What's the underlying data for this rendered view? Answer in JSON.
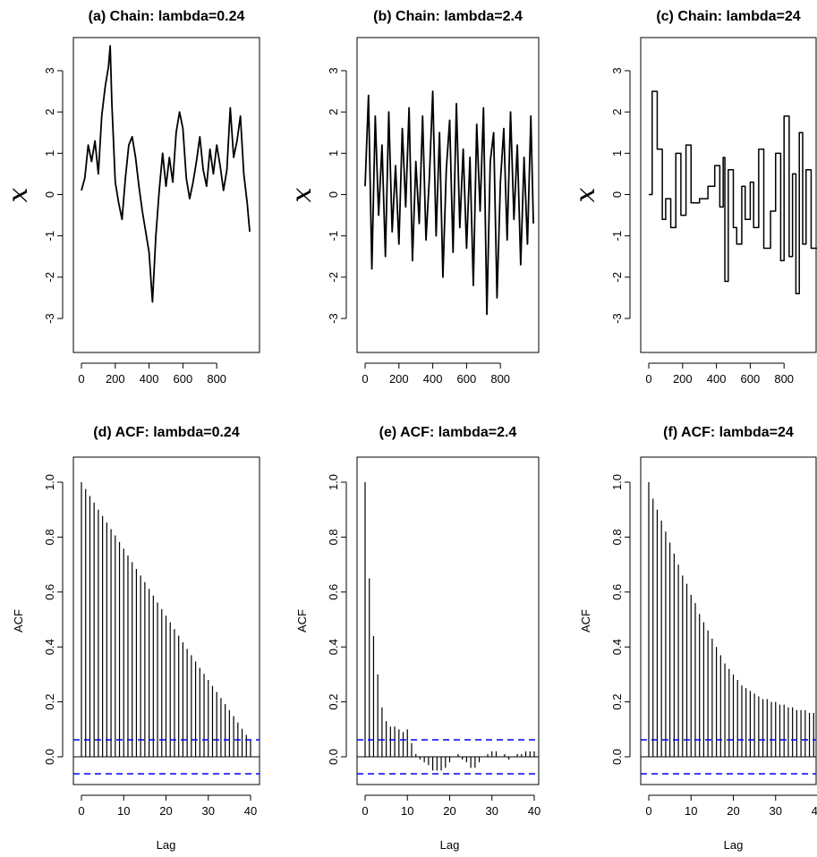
{
  "chart_data": [
    {
      "type": "line",
      "panel": "a",
      "title": "(a) Chain: lambda=0.24",
      "xlabel": "",
      "ylabel": "x",
      "xlim": [
        0,
        1000
      ],
      "ylim": [
        -3,
        3.5
      ],
      "xticks": [
        0,
        200,
        400,
        600,
        800
      ],
      "yticks": [
        -3,
        -2,
        -1,
        0,
        1,
        2,
        3
      ],
      "x": [
        0,
        20,
        40,
        60,
        80,
        100,
        120,
        140,
        160,
        170,
        180,
        200,
        220,
        240,
        260,
        280,
        300,
        320,
        340,
        360,
        380,
        400,
        410,
        420,
        440,
        460,
        480,
        500,
        520,
        540,
        560,
        580,
        600,
        620,
        640,
        660,
        680,
        700,
        720,
        740,
        760,
        780,
        800,
        820,
        840,
        860,
        880,
        900,
        920,
        940,
        960,
        980,
        995
      ],
      "y": [
        0.1,
        0.4,
        1.2,
        0.8,
        1.3,
        0.5,
        1.9,
        2.6,
        3.1,
        3.6,
        2.2,
        0.3,
        -0.2,
        -0.6,
        0.4,
        1.2,
        1.4,
        0.9,
        0.2,
        -0.4,
        -0.9,
        -1.4,
        -2.0,
        -2.6,
        -1.0,
        0.1,
        1.0,
        0.2,
        0.9,
        0.3,
        1.5,
        2.0,
        1.6,
        0.4,
        -0.1,
        0.3,
        0.8,
        1.4,
        0.6,
        0.2,
        1.1,
        0.5,
        1.2,
        0.7,
        0.1,
        0.6,
        2.1,
        0.9,
        1.3,
        1.9,
        0.5,
        -0.2,
        -0.9
      ]
    },
    {
      "type": "line",
      "panel": "b",
      "title": "(b) Chain: lambda=2.4",
      "xlabel": "",
      "ylabel": "x",
      "xlim": [
        0,
        1000
      ],
      "ylim": [
        -3,
        3.5
      ],
      "xticks": [
        0,
        200,
        400,
        600,
        800
      ],
      "yticks": [
        -3,
        -2,
        -1,
        0,
        1,
        2,
        3
      ],
      "x": [
        0,
        20,
        40,
        60,
        80,
        100,
        120,
        140,
        160,
        180,
        200,
        220,
        240,
        260,
        280,
        300,
        320,
        340,
        360,
        380,
        400,
        420,
        440,
        460,
        480,
        500,
        520,
        540,
        560,
        580,
        600,
        620,
        640,
        660,
        680,
        700,
        720,
        740,
        760,
        780,
        800,
        820,
        840,
        860,
        880,
        900,
        920,
        940,
        960,
        980,
        995
      ],
      "y": [
        0.2,
        2.4,
        -1.8,
        1.9,
        -0.5,
        1.2,
        -1.5,
        2.0,
        -0.9,
        0.7,
        -1.2,
        1.6,
        -0.3,
        2.1,
        -1.6,
        0.8,
        -0.7,
        1.9,
        -1.1,
        0.4,
        2.5,
        -1.0,
        1.5,
        -2.0,
        0.6,
        1.8,
        -1.4,
        2.2,
        -0.8,
        1.1,
        -1.3,
        0.9,
        -2.2,
        1.7,
        -0.4,
        2.1,
        -2.9,
        0.8,
        1.5,
        -2.5,
        0.3,
        1.6,
        -1.1,
        2.0,
        -0.6,
        1.2,
        -1.7,
        0.9,
        -1.2,
        1.9,
        -0.7
      ]
    },
    {
      "type": "line",
      "panel": "c",
      "title": "(c) Chain: lambda=24",
      "xlabel": "",
      "ylabel": "x",
      "xlim": [
        0,
        1000
      ],
      "ylim": [
        -3,
        3.5
      ],
      "xticks": [
        0,
        200,
        400,
        600,
        800
      ],
      "yticks": [
        -3,
        -2,
        -1,
        0,
        1,
        2,
        3
      ],
      "x": [
        0,
        20,
        50,
        80,
        100,
        130,
        160,
        190,
        220,
        250,
        300,
        350,
        390,
        420,
        440,
        450,
        470,
        500,
        520,
        550,
        570,
        600,
        620,
        650,
        680,
        720,
        750,
        780,
        800,
        830,
        850,
        870,
        890,
        910,
        930,
        960,
        995
      ],
      "y": [
        0.0,
        2.5,
        1.1,
        -0.6,
        -0.1,
        -0.8,
        1.0,
        -0.5,
        1.2,
        -0.2,
        -0.1,
        0.2,
        0.7,
        -0.3,
        0.9,
        -2.1,
        0.6,
        -0.8,
        -1.2,
        0.2,
        -0.6,
        0.3,
        -0.8,
        1.1,
        -1.3,
        -0.4,
        1.0,
        -1.6,
        1.9,
        -1.5,
        0.5,
        -2.4,
        1.5,
        -1.2,
        0.6,
        -1.3,
        -1.3
      ]
    },
    {
      "type": "bar",
      "panel": "d",
      "title": "(d) ACF: lambda=0.24",
      "xlabel": "Lag",
      "ylabel": "ACF",
      "xlim": [
        0,
        41
      ],
      "ylim": [
        -0.1,
        1.03
      ],
      "xticks": [
        0,
        10,
        20,
        30,
        40
      ],
      "yticks": [
        0.0,
        0.2,
        0.4,
        0.6,
        0.8,
        1.0
      ],
      "ci": 0.062,
      "lags": [
        0,
        1,
        2,
        3,
        4,
        5,
        6,
        7,
        8,
        9,
        10,
        11,
        12,
        13,
        14,
        15,
        16,
        17,
        18,
        19,
        20,
        21,
        22,
        23,
        24,
        25,
        26,
        27,
        28,
        29,
        30,
        31,
        32,
        33,
        34,
        35,
        36,
        37,
        38,
        39,
        40
      ],
      "values": [
        1.0,
        0.975,
        0.95,
        0.925,
        0.9,
        0.877,
        0.853,
        0.829,
        0.806,
        0.782,
        0.758,
        0.733,
        0.709,
        0.684,
        0.66,
        0.636,
        0.611,
        0.587,
        0.562,
        0.538,
        0.514,
        0.49,
        0.465,
        0.441,
        0.417,
        0.393,
        0.37,
        0.347,
        0.324,
        0.302,
        0.28,
        0.258,
        0.236,
        0.214,
        0.192,
        0.17,
        0.148,
        0.125,
        0.102,
        0.08,
        0.06
      ]
    },
    {
      "type": "bar",
      "panel": "e",
      "title": "(e) ACF: lambda=2.4",
      "xlabel": "Lag",
      "ylabel": "ACF",
      "xlim": [
        0,
        41
      ],
      "ylim": [
        -0.1,
        1.03
      ],
      "xticks": [
        0,
        10,
        20,
        30,
        40
      ],
      "yticks": [
        0.0,
        0.2,
        0.4,
        0.6,
        0.8,
        1.0
      ],
      "ci": 0.062,
      "lags": [
        0,
        1,
        2,
        3,
        4,
        5,
        6,
        7,
        8,
        9,
        10,
        11,
        12,
        13,
        14,
        15,
        16,
        17,
        18,
        19,
        20,
        21,
        22,
        23,
        24,
        25,
        26,
        27,
        28,
        29,
        30,
        31,
        32,
        33,
        34,
        35,
        36,
        37,
        38,
        39,
        40
      ],
      "values": [
        1.0,
        0.65,
        0.44,
        0.3,
        0.18,
        0.13,
        0.11,
        0.11,
        0.1,
        0.09,
        0.1,
        0.05,
        0.01,
        -0.01,
        -0.02,
        -0.03,
        -0.05,
        -0.05,
        -0.05,
        -0.04,
        -0.02,
        0.0,
        0.01,
        -0.01,
        -0.02,
        -0.04,
        -0.04,
        -0.02,
        0.0,
        0.01,
        0.02,
        0.02,
        0.0,
        0.01,
        -0.01,
        0.0,
        0.01,
        0.01,
        0.02,
        0.02,
        0.02
      ]
    },
    {
      "type": "bar",
      "panel": "f",
      "title": "(f) ACF: lambda=24",
      "xlabel": "Lag",
      "ylabel": "ACF",
      "xlim": [
        0,
        41
      ],
      "ylim": [
        -0.1,
        1.03
      ],
      "xticks": [
        0,
        10,
        20,
        30,
        40
      ],
      "yticks": [
        0.0,
        0.2,
        0.4,
        0.6,
        0.8,
        1.0
      ],
      "ci": 0.062,
      "lags": [
        0,
        1,
        2,
        3,
        4,
        5,
        6,
        7,
        8,
        9,
        10,
        11,
        12,
        13,
        14,
        15,
        16,
        17,
        18,
        19,
        20,
        21,
        22,
        23,
        24,
        25,
        26,
        27,
        28,
        29,
        30,
        31,
        32,
        33,
        34,
        35,
        36,
        37,
        38,
        39,
        40
      ],
      "values": [
        1.0,
        0.94,
        0.9,
        0.86,
        0.82,
        0.78,
        0.74,
        0.7,
        0.66,
        0.63,
        0.59,
        0.56,
        0.52,
        0.49,
        0.46,
        0.43,
        0.4,
        0.37,
        0.34,
        0.32,
        0.3,
        0.28,
        0.26,
        0.25,
        0.24,
        0.23,
        0.22,
        0.21,
        0.21,
        0.2,
        0.2,
        0.19,
        0.19,
        0.18,
        0.18,
        0.17,
        0.17,
        0.17,
        0.16,
        0.16,
        0.15
      ]
    }
  ],
  "styles": {
    "line_color": "#000000",
    "ci_color": "#0000ff"
  }
}
